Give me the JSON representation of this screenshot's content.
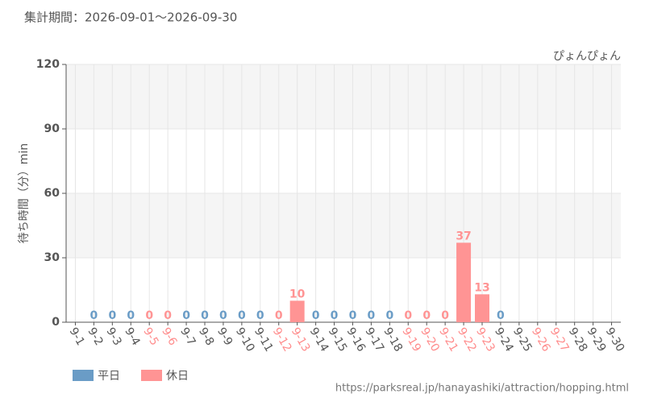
{
  "chart_data": {
    "type": "bar",
    "title": "集計期間：2026-09-01～2026-09-30",
    "annotation": "ぴょんぴょん",
    "y_label": "待ち時間（分）min",
    "source": "https://parksreal.jp/hanayashiki/attraction/hopping.html",
    "categories": [
      "9-1",
      "9-2",
      "9-3",
      "9-4",
      "9-5",
      "9-6",
      "9-7",
      "9-8",
      "9-9",
      "9-10",
      "9-11",
      "9-12",
      "9-13",
      "9-14",
      "9-15",
      "9-16",
      "9-17",
      "9-18",
      "9-19",
      "9-20",
      "9-21",
      "9-22",
      "9-23",
      "9-24",
      "9-25",
      "9-26",
      "9-27",
      "9-28",
      "9-29",
      "9-30"
    ],
    "category_colors": [
      "#555555",
      "#555555",
      "#555555",
      "#555555",
      "#ff8c8c",
      "#ff8c8c",
      "#555555",
      "#555555",
      "#555555",
      "#555555",
      "#555555",
      "#ff8c8c",
      "#ff8c8c",
      "#555555",
      "#555555",
      "#555555",
      "#555555",
      "#555555",
      "#ff8c8c",
      "#ff8c8c",
      "#ff8c8c",
      "#ff8c8c",
      "#ff8c8c",
      "#555555",
      "#555555",
      "#ff8c8c",
      "#ff8c8c",
      "#555555",
      "#555555",
      "#555555"
    ],
    "series": [
      {
        "name": "平日",
        "color": "#6a9cc6",
        "values": [
          null,
          0,
          0,
          0,
          null,
          null,
          0,
          0,
          0,
          0,
          0,
          null,
          null,
          0,
          0,
          0,
          0,
          0,
          null,
          null,
          null,
          null,
          null,
          0,
          null,
          null,
          null,
          null,
          null,
          null
        ]
      },
      {
        "name": "休日",
        "color": "#ff9494",
        "values": [
          null,
          null,
          null,
          null,
          0,
          0,
          null,
          null,
          null,
          null,
          null,
          0,
          10,
          null,
          null,
          null,
          null,
          null,
          0,
          0,
          0,
          37,
          13,
          null,
          null,
          null,
          null,
          null,
          null,
          null
        ]
      }
    ],
    "ylim": [
      0,
      120
    ],
    "yticks": [
      0,
      30,
      60,
      90,
      120
    ],
    "grid": true
  }
}
